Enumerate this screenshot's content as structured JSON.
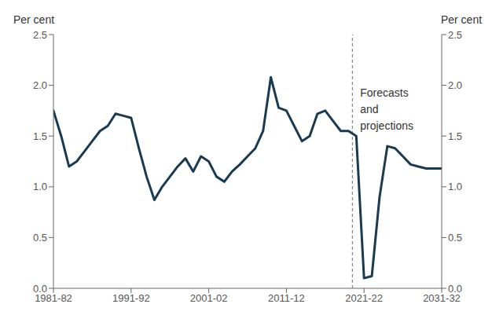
{
  "chart_data": {
    "type": "line",
    "x": [
      1981,
      1982,
      1983,
      1984,
      1985,
      1986,
      1987,
      1988,
      1989,
      1990,
      1991,
      1992,
      1993,
      1994,
      1995,
      1996,
      1997,
      1998,
      1999,
      2000,
      2001,
      2002,
      2003,
      2004,
      2005,
      2006,
      2007,
      2008,
      2009,
      2010,
      2011,
      2012,
      2013,
      2014,
      2015,
      2016,
      2017,
      2018,
      2019,
      2020,
      2021,
      2022,
      2023,
      2024,
      2025,
      2026,
      2027,
      2028,
      2029,
      2030,
      2031
    ],
    "values": [
      1.75,
      1.5,
      1.2,
      1.25,
      1.35,
      1.45,
      1.55,
      1.6,
      1.72,
      1.7,
      1.68,
      1.38,
      1.1,
      0.87,
      1.0,
      1.1,
      1.2,
      1.28,
      1.15,
      1.3,
      1.25,
      1.1,
      1.05,
      1.15,
      1.22,
      1.3,
      1.38,
      1.55,
      2.08,
      1.78,
      1.75,
      1.6,
      1.45,
      1.5,
      1.72,
      1.75,
      1.65,
      1.55,
      1.55,
      1.5,
      0.1,
      0.12,
      0.9,
      1.4,
      1.38,
      1.3,
      1.22,
      1.2,
      1.18,
      1.18,
      1.18
    ],
    "color": "#1a3a52",
    "xlim": [
      1981,
      2031
    ],
    "xticks": [
      {
        "value": 1981,
        "label": "1981-82"
      },
      {
        "value": 1991,
        "label": "1991-92"
      },
      {
        "value": 2001,
        "label": "2001-02"
      },
      {
        "value": 2011,
        "label": "2011-12"
      },
      {
        "value": 2021,
        "label": "2021-22"
      },
      {
        "value": 2031,
        "label": "2031-32"
      }
    ],
    "ylim": [
      0.0,
      2.5
    ],
    "yticks": [
      {
        "value": 0,
        "label": "0.0"
      },
      0.5,
      {
        "value": 1,
        "label": "1.0"
      },
      1.5,
      {
        "value": 2,
        "label": "2.0"
      },
      2.5
    ],
    "y2lim": [
      0.0,
      2.5
    ],
    "y2ticks": [
      {
        "value": 0,
        "label": "0.0"
      },
      0.5,
      {
        "value": 1,
        "label": "1.0"
      },
      1.5,
      {
        "value": 2,
        "label": "2.0"
      },
      2.5
    ],
    "ylabel": "Per cent",
    "y2label": "Per cent",
    "reference_lines": [
      {
        "x": 2019.5,
        "color": "#888888",
        "line_style": "dashed"
      }
    ],
    "annotations": [
      {
        "text": "Forecasts\nand\nprojections",
        "x": 2020.5,
        "y": 2.0
      }
    ],
    "grid": false
  }
}
